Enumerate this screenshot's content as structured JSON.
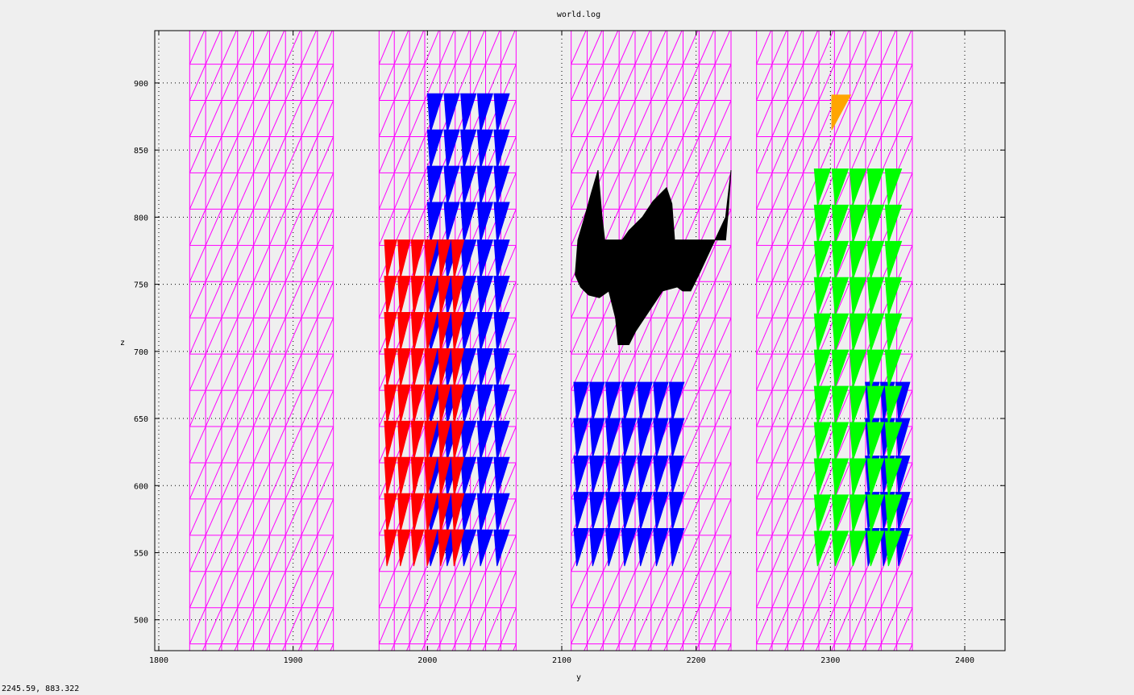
{
  "window": {
    "status_readout": "2245.59,  883.322"
  },
  "colors": {
    "mesh": "#ff00ff",
    "background": "#efefef",
    "grid": "#000000",
    "blue": "#0000ff",
    "red": "#ff0000",
    "green": "#00ff00",
    "black": "#000000",
    "orange": "#ffa500",
    "trace": "#4a86e8"
  },
  "chart_data": {
    "type": "scatter",
    "title": "world.log",
    "xlabel": "y",
    "ylabel": "z",
    "xlim": [
      1797,
      2430
    ],
    "ylim": [
      477,
      939
    ],
    "xticks": [
      1800,
      1900,
      2000,
      2100,
      2200,
      2300,
      2400
    ],
    "yticks": [
      500,
      550,
      600,
      650,
      700,
      750,
      800,
      850,
      900
    ],
    "grid": true,
    "grid_style": "dotted",
    "mesh_columns": [
      {
        "y_min": 1823,
        "y_max": 1930
      },
      {
        "y_min": 1964,
        "y_max": 2066
      },
      {
        "y_min": 2107,
        "y_max": 2226
      },
      {
        "y_min": 2245,
        "y_max": 2361
      }
    ],
    "mesh_row_step": 27,
    "series": [
      {
        "color": "blue",
        "cells": [
          {
            "y_start": 2000,
            "y_end": 2062,
            "z_bottom": 863,
            "z_top": 892,
            "count": 5
          },
          {
            "y_start": 2000,
            "y_end": 2062,
            "z_bottom": 836,
            "z_top": 865,
            "count": 5
          },
          {
            "y_start": 2000,
            "y_end": 2062,
            "z_bottom": 809,
            "z_top": 838,
            "count": 5
          },
          {
            "y_start": 2000,
            "y_end": 2062,
            "z_bottom": 781,
            "z_top": 811,
            "count": 5
          },
          {
            "y_start": 2000,
            "y_end": 2062,
            "z_bottom": 754,
            "z_top": 783,
            "count": 5
          },
          {
            "y_start": 2000,
            "y_end": 2062,
            "z_bottom": 727,
            "z_top": 756,
            "count": 5
          },
          {
            "y_start": 2000,
            "y_end": 2062,
            "z_bottom": 700,
            "z_top": 729,
            "count": 5
          },
          {
            "y_start": 2000,
            "y_end": 2062,
            "z_bottom": 673,
            "z_top": 702,
            "count": 5
          },
          {
            "y_start": 2000,
            "y_end": 2062,
            "z_bottom": 646,
            "z_top": 675,
            "count": 5
          },
          {
            "y_start": 2000,
            "y_end": 2062,
            "z_bottom": 619,
            "z_top": 648,
            "count": 5
          },
          {
            "y_start": 2000,
            "y_end": 2062,
            "z_bottom": 592,
            "z_top": 621,
            "count": 5
          },
          {
            "y_start": 2000,
            "y_end": 2062,
            "z_bottom": 565,
            "z_top": 594,
            "count": 5
          },
          {
            "y_start": 2000,
            "y_end": 2062,
            "z_bottom": 540,
            "z_top": 567,
            "count": 5
          },
          {
            "y_start": 2109,
            "y_end": 2192,
            "z_bottom": 648,
            "z_top": 677,
            "count": 7
          },
          {
            "y_start": 2109,
            "y_end": 2192,
            "z_bottom": 621,
            "z_top": 650,
            "count": 7
          },
          {
            "y_start": 2109,
            "y_end": 2192,
            "z_bottom": 594,
            "z_top": 622,
            "count": 7
          },
          {
            "y_start": 2109,
            "y_end": 2192,
            "z_bottom": 567,
            "z_top": 595,
            "count": 7
          },
          {
            "y_start": 2109,
            "y_end": 2192,
            "z_bottom": 540,
            "z_top": 568,
            "count": 7
          },
          {
            "y_start": 2326,
            "y_end": 2360,
            "z_bottom": 648,
            "z_top": 677,
            "count": 3
          },
          {
            "y_start": 2326,
            "y_end": 2360,
            "z_bottom": 621,
            "z_top": 650,
            "count": 3
          },
          {
            "y_start": 2326,
            "y_end": 2360,
            "z_bottom": 594,
            "z_top": 622,
            "count": 3
          },
          {
            "y_start": 2326,
            "y_end": 2360,
            "z_bottom": 567,
            "z_top": 595,
            "count": 3
          },
          {
            "y_start": 2326,
            "y_end": 2360,
            "z_bottom": 540,
            "z_top": 568,
            "count": 3
          }
        ]
      },
      {
        "color": "red",
        "cells": [
          {
            "y_start": 1968,
            "y_end": 2028,
            "z_bottom": 754,
            "z_top": 783,
            "count": 6
          },
          {
            "y_start": 1968,
            "y_end": 2028,
            "z_bottom": 727,
            "z_top": 756,
            "count": 6
          },
          {
            "y_start": 1968,
            "y_end": 2028,
            "z_bottom": 700,
            "z_top": 729,
            "count": 6
          },
          {
            "y_start": 1968,
            "y_end": 2028,
            "z_bottom": 673,
            "z_top": 702,
            "count": 6
          },
          {
            "y_start": 1968,
            "y_end": 2028,
            "z_bottom": 646,
            "z_top": 675,
            "count": 6
          },
          {
            "y_start": 1968,
            "y_end": 2028,
            "z_bottom": 619,
            "z_top": 648,
            "count": 6
          },
          {
            "y_start": 1968,
            "y_end": 2028,
            "z_bottom": 592,
            "z_top": 621,
            "count": 6
          },
          {
            "y_start": 1968,
            "y_end": 2028,
            "z_bottom": 565,
            "z_top": 594,
            "count": 6
          },
          {
            "y_start": 1968,
            "y_end": 2028,
            "z_bottom": 540,
            "z_top": 567,
            "count": 6
          }
        ]
      },
      {
        "color": "green",
        "cells": [
          {
            "y_start": 2288,
            "y_end": 2354,
            "z_bottom": 809,
            "z_top": 836,
            "count": 5
          },
          {
            "y_start": 2288,
            "y_end": 2354,
            "z_bottom": 781,
            "z_top": 809,
            "count": 5
          },
          {
            "y_start": 2288,
            "y_end": 2354,
            "z_bottom": 754,
            "z_top": 782,
            "count": 5
          },
          {
            "y_start": 2288,
            "y_end": 2354,
            "z_bottom": 727,
            "z_top": 755,
            "count": 5
          },
          {
            "y_start": 2288,
            "y_end": 2354,
            "z_bottom": 700,
            "z_top": 728,
            "count": 5
          },
          {
            "y_start": 2288,
            "y_end": 2354,
            "z_bottom": 673,
            "z_top": 701,
            "count": 5
          },
          {
            "y_start": 2288,
            "y_end": 2354,
            "z_bottom": 646,
            "z_top": 674,
            "count": 5
          },
          {
            "y_start": 2288,
            "y_end": 2354,
            "z_bottom": 619,
            "z_top": 647,
            "count": 5
          },
          {
            "y_start": 2288,
            "y_end": 2354,
            "z_bottom": 592,
            "z_top": 620,
            "count": 5
          },
          {
            "y_start": 2288,
            "y_end": 2354,
            "z_bottom": 565,
            "z_top": 593,
            "count": 5
          },
          {
            "y_start": 2288,
            "y_end": 2354,
            "z_bottom": 540,
            "z_top": 566,
            "count": 5
          }
        ]
      },
      {
        "color": "black",
        "polygon": [
          [
            2110,
            757
          ],
          [
            2112,
            783
          ],
          [
            2117,
            800
          ],
          [
            2122,
            818
          ],
          [
            2127,
            835
          ],
          [
            2130,
            800
          ],
          [
            2132,
            783
          ],
          [
            2145,
            783
          ],
          [
            2150,
            790
          ],
          [
            2160,
            800
          ],
          [
            2168,
            812
          ],
          [
            2178,
            822
          ],
          [
            2182,
            810
          ],
          [
            2184,
            783
          ],
          [
            2222,
            783
          ],
          [
            2224,
            805
          ],
          [
            2226,
            835
          ],
          [
            2222,
            800
          ],
          [
            2215,
            785
          ],
          [
            2208,
            770
          ],
          [
            2202,
            757
          ],
          [
            2196,
            745
          ],
          [
            2190,
            745
          ],
          [
            2186,
            748
          ],
          [
            2175,
            745
          ],
          [
            2165,
            730
          ],
          [
            2155,
            715
          ],
          [
            2150,
            705
          ],
          [
            2142,
            705
          ],
          [
            2140,
            725
          ],
          [
            2135,
            745
          ],
          [
            2128,
            740
          ],
          [
            2120,
            742
          ],
          [
            2114,
            748
          ]
        ]
      },
      {
        "color": "orange",
        "polygon": [
          [
            2301,
            891
          ],
          [
            2315,
            891
          ],
          [
            2301,
            865
          ]
        ]
      }
    ]
  }
}
